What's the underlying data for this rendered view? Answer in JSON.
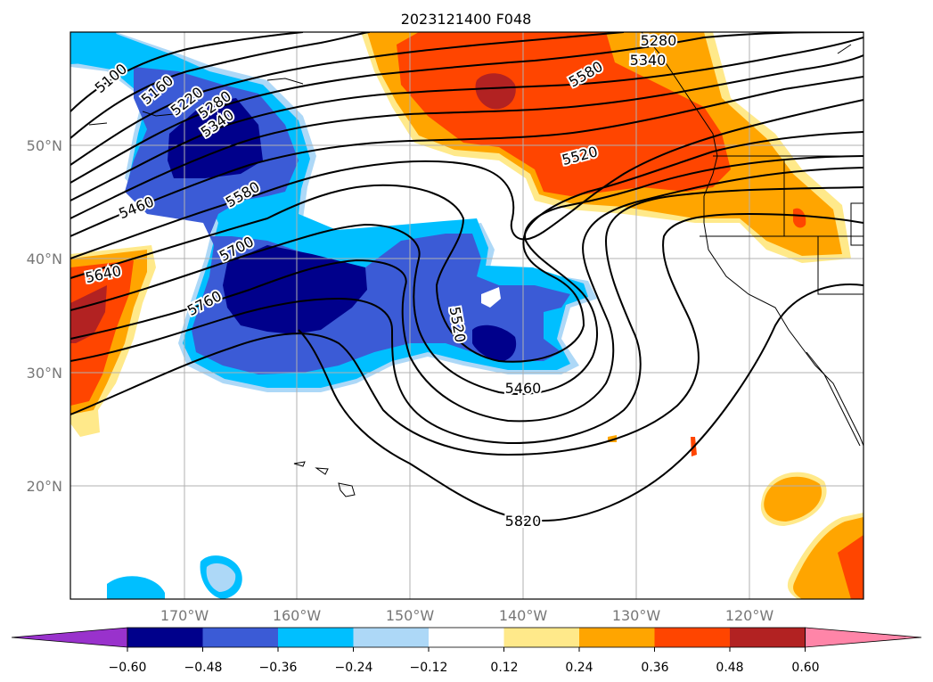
{
  "title": "2023121400 F048",
  "map": {
    "lon_ticks": [
      "170°W",
      "160°W",
      "150°W",
      "140°W",
      "130°W",
      "120°W"
    ],
    "lat_ticks": [
      "50°N",
      "40°N",
      "30°N",
      "20°N"
    ],
    "grid": true,
    "extent": {
      "lon": [
        -180,
        -110
      ],
      "lat": [
        10,
        60
      ]
    }
  },
  "contours": {
    "field": "geopotential height",
    "levels_labeled": [
      "5100",
      "5160",
      "5220",
      "5280",
      "5340",
      "5460",
      "5580",
      "5640",
      "5700",
      "5760",
      "5520",
      "5460",
      "5820",
      "5280",
      "5340",
      "5520",
      "5580"
    ]
  },
  "colorbar": {
    "ticks": [
      "−0.60",
      "−0.48",
      "−0.36",
      "−0.24",
      "−0.12",
      "0.12",
      "0.24",
      "0.36",
      "0.48",
      "0.60"
    ],
    "colors": [
      "#9932cc",
      "#00008b",
      "#3b5bd6",
      "#00bfff",
      "#add8f7",
      "#ffffff",
      "#ffe98a",
      "#ffa500",
      "#ff4500",
      "#b22222",
      "#ff85a8"
    ],
    "extend": "both"
  }
}
